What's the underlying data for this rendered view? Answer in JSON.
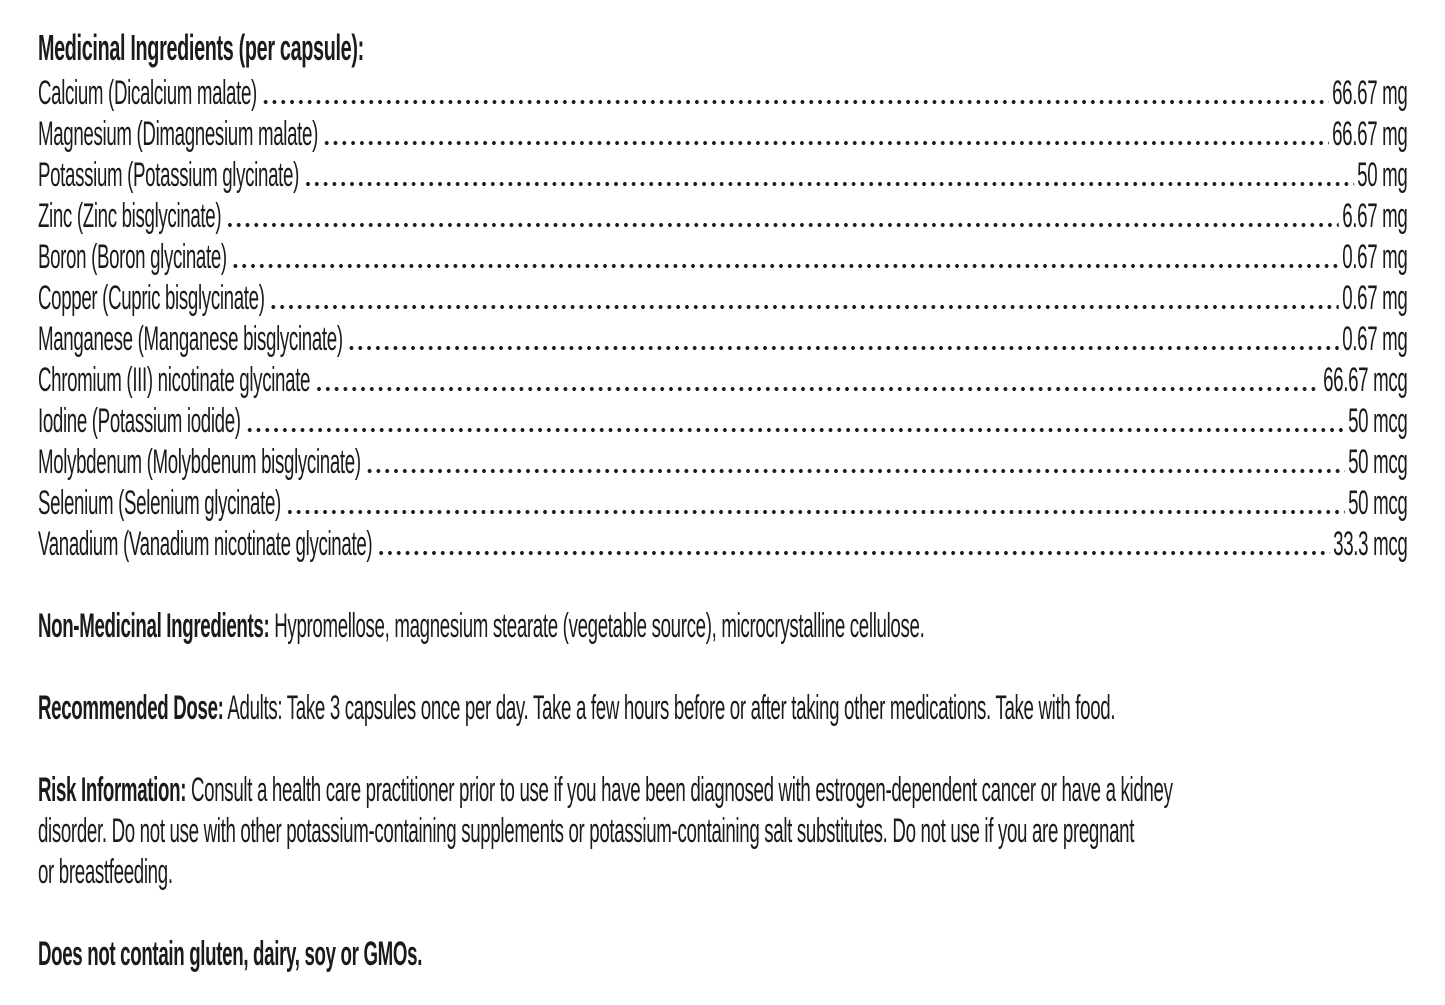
{
  "colors": {
    "text": "#1b1b1a",
    "background": "#ffffff"
  },
  "medicinal": {
    "heading": "Medicinal Ingredients (per capsule):",
    "items": [
      {
        "name": "Calcium (Dicalcium malate)",
        "amount": "66.67 mg"
      },
      {
        "name": "Magnesium (Dimagnesium malate)",
        "amount": "66.67 mg"
      },
      {
        "name": "Potassium (Potassium glycinate)",
        "amount": "50 mg"
      },
      {
        "name": "Zinc (Zinc bisglycinate)",
        "amount": "6.67 mg"
      },
      {
        "name": "Boron (Boron glycinate)",
        "amount": "0.67 mg"
      },
      {
        "name": "Copper (Cupric bisglycinate)",
        "amount": "0.67 mg"
      },
      {
        "name": "Manganese (Manganese bisglycinate)",
        "amount": "0.67 mg"
      },
      {
        "name": "Chromium (III) nicotinate glycinate",
        "amount": "66.67 mcg"
      },
      {
        "name": "Iodine (Potassium iodide)",
        "amount": "50 mcg"
      },
      {
        "name": "Molybdenum (Molybdenum bisglycinate)",
        "amount": "50 mcg"
      },
      {
        "name": "Selenium (Selenium glycinate)",
        "amount": "50 mcg"
      },
      {
        "name": "Vanadium (Vanadium nicotinate glycinate)",
        "amount": "33.3 mcg"
      }
    ]
  },
  "non_medicinal": {
    "label": "Non-Medicinal Ingredients:",
    "text": "Hypromellose, magnesium stearate (vegetable source), microcrystalline cellulose."
  },
  "recommended_dose": {
    "label": "Recommended Dose:",
    "text": "Adults: Take 3 capsules once per day. Take a few hours before or after taking other medications. Take with food."
  },
  "risk_information": {
    "label": "Risk Information:",
    "text": "Consult a health care practitioner prior to use if you have been diagnosed with estrogen-dependent cancer or have a kidney\ndisorder. Do not use with other potassium-containing supplements or potassium-containing salt substitutes. Do not use if you are pregnant\nor breastfeeding."
  },
  "footer": {
    "text": "Does not contain gluten, dairy, soy or GMOs."
  }
}
